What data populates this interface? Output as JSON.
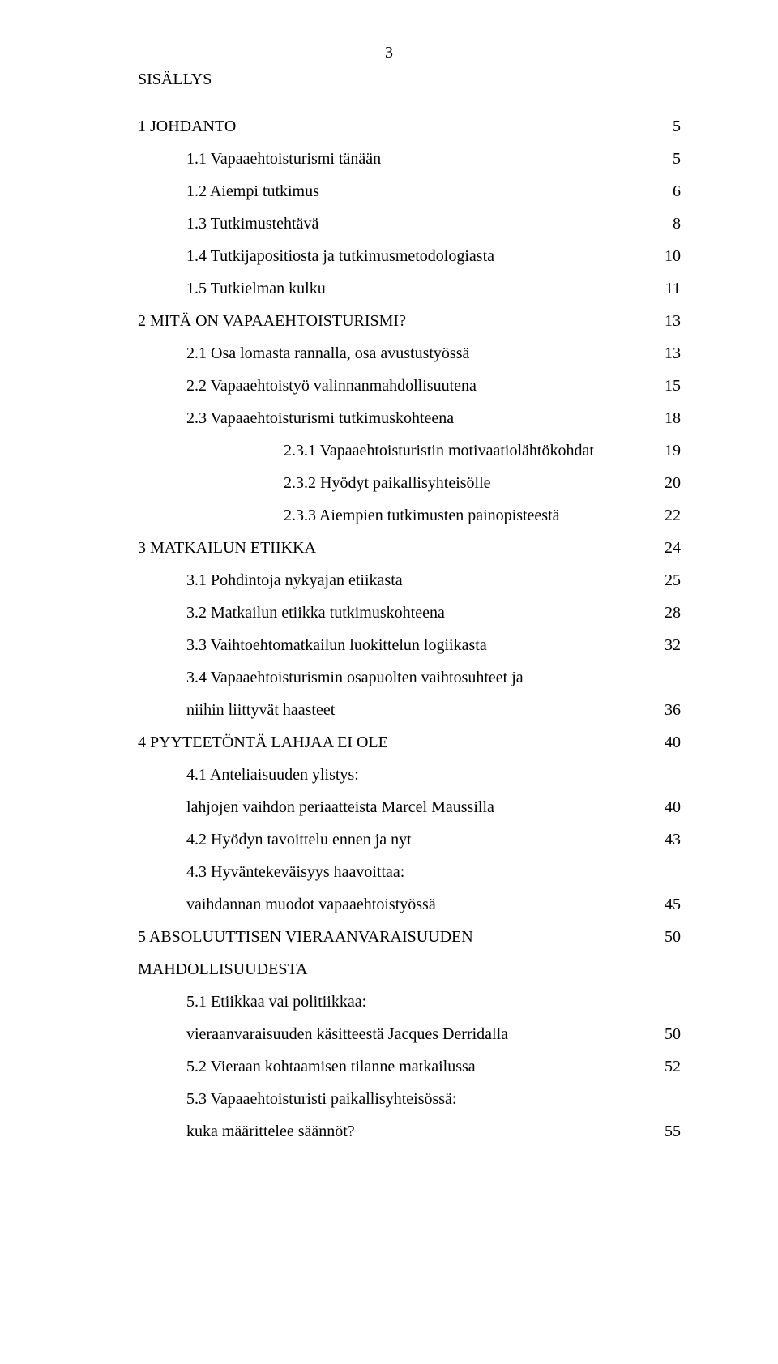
{
  "page_number": "3",
  "heading": "SISÄLLYS",
  "font": {
    "family": "Times New Roman",
    "body_size_pt": 15,
    "color": "#000000",
    "line_height": 2.0
  },
  "background_color": "#ffffff",
  "toc": [
    {
      "text": "1 JOHDANTO",
      "page": "5",
      "indent": 0
    },
    {
      "text": "1.1 Vapaaehtoisturismi tänään",
      "page": "5",
      "indent": 1
    },
    {
      "text": "1.2 Aiempi tutkimus",
      "page": "6",
      "indent": 1
    },
    {
      "text": "1.3 Tutkimustehtävä",
      "page": "8",
      "indent": 1
    },
    {
      "text": "1.4 Tutkijapositiosta ja tutkimusmetodologiasta",
      "page": "10",
      "indent": 1
    },
    {
      "text": "1.5 Tutkielman kulku",
      "page": "11",
      "indent": 1
    },
    {
      "text": "2 MITÄ ON VAPAAEHTOISTURISMI?",
      "page": "13",
      "indent": 0
    },
    {
      "text": "2.1 Osa lomasta rannalla, osa avustustyössä",
      "page": "13",
      "indent": 1
    },
    {
      "text": "2.2 Vapaaehtoistyö valinnanmahdollisuutena",
      "page": "15",
      "indent": 1
    },
    {
      "text": "2.3 Vapaaehtoisturismi tutkimuskohteena",
      "page": "18",
      "indent": 1
    },
    {
      "text": "2.3.1 Vapaaehtoisturistin motivaatiolähtökohdat",
      "page": "19",
      "indent": 2
    },
    {
      "text": "2.3.2 Hyödyt paikallisyhteisölle",
      "page": "20",
      "indent": 2
    },
    {
      "text": "2.3.3 Aiempien tutkimusten painopisteestä",
      "page": "22",
      "indent": 2
    },
    {
      "text": "3 MATKAILUN ETIIKKA",
      "page": "24",
      "indent": 0
    },
    {
      "text": "3.1 Pohdintoja nykyajan etiikasta",
      "page": "25",
      "indent": 1
    },
    {
      "text": "3.2 Matkailun etiikka tutkimuskohteena",
      "page": "28",
      "indent": 1
    },
    {
      "text": "3.3 Vaihtoehtomatkailun luokittelun logiikasta",
      "page": "32",
      "indent": 1
    },
    {
      "text": "3.4 Vapaaehtoisturismin osapuolten vaihtosuhteet ja",
      "page": "",
      "indent": 1
    },
    {
      "text": "niihin liittyvät haasteet",
      "page": "36",
      "indent": 1,
      "continuation": true
    },
    {
      "text": "4 PYYTEETÖNTÄ LAHJAA EI OLE",
      "page": "40",
      "indent": 0
    },
    {
      "text": "4.1 Anteliaisuuden ylistys:",
      "page": "",
      "indent": 1
    },
    {
      "text": "lahjojen vaihdon periaatteista Marcel Maussilla",
      "page": "40",
      "indent": 1,
      "continuation": true
    },
    {
      "text": "4.2 Hyödyn tavoittelu ennen ja nyt",
      "page": "43",
      "indent": 1
    },
    {
      "text": "4.3 Hyväntekeväisyys haavoittaa:",
      "page": "",
      "indent": 1
    },
    {
      "text": "vaihdannan muodot vapaaehtoistyössä",
      "page": "45",
      "indent": 1,
      "continuation": true
    },
    {
      "text": "5 ABSOLUUTTISEN VIERAANVARAISUUDEN MAHDOLLISUUDESTA",
      "page": "50",
      "indent": 0
    },
    {
      "text": "5.1 Etiikkaa vai politiikkaa:",
      "page": "",
      "indent": 1
    },
    {
      "text": "vieraanvaraisuuden käsitteestä Jacques Derridalla",
      "page": "50",
      "indent": 1,
      "continuation": true
    },
    {
      "text": "5.2 Vieraan kohtaamisen tilanne matkailussa",
      "page": "52",
      "indent": 1
    },
    {
      "text": "5.3 Vapaaehtoisturisti paikallisyhteisössä:",
      "page": "",
      "indent": 1
    },
    {
      "text": "kuka määrittelee säännöt?",
      "page": "55",
      "indent": 1,
      "continuation": true
    }
  ]
}
